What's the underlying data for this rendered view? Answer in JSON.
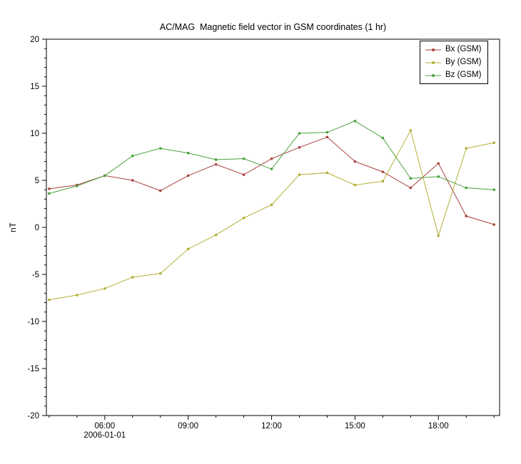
{
  "chart_data": {
    "type": "line",
    "title": "AC/MAG  Magnetic field vector in GSM coordinates (1 hr)",
    "ylabel": "nT",
    "xdate": "2006-01-01",
    "ylim": [
      -20,
      20
    ],
    "xlim": [
      3.9,
      20.2
    ],
    "yticks": [
      -20,
      -15,
      -10,
      -5,
      0,
      5,
      10,
      15,
      20
    ],
    "xticks": [
      {
        "h": 6,
        "label": "06:00"
      },
      {
        "h": 9,
        "label": "09:00"
      },
      {
        "h": 12,
        "label": "12:00"
      },
      {
        "h": 15,
        "label": "15:00"
      },
      {
        "h": 18,
        "label": "18:00"
      }
    ],
    "x_unit": "hour of day on 2006-01-01",
    "x": [
      4,
      5,
      6,
      7,
      8,
      9,
      10,
      11,
      12,
      13,
      14,
      15,
      16,
      17,
      18,
      19,
      20
    ],
    "grid": false,
    "legend_position": "top-right",
    "series": [
      {
        "id": "bx",
        "name": "Bx (GSM)",
        "color": "#a8423e",
        "values": [
          4.1,
          4.5,
          5.5,
          5.0,
          3.9,
          5.5,
          6.7,
          5.6,
          7.3,
          8.5,
          9.6,
          7.0,
          5.9,
          4.2,
          6.8,
          1.2,
          0.3
        ]
      },
      {
        "id": "by",
        "name": "By (GSM)",
        "color": "#b3af35",
        "values": [
          -7.7,
          -7.2,
          -6.5,
          -5.3,
          -4.9,
          -2.3,
          -0.8,
          1.0,
          2.4,
          5.6,
          5.8,
          4.5,
          4.9,
          10.3,
          -0.9,
          8.4,
          9.0
        ]
      },
      {
        "id": "bz",
        "name": "Bz (GSM)",
        "color": "#49a23c",
        "values": [
          3.6,
          4.4,
          5.5,
          7.6,
          8.4,
          7.9,
          7.2,
          7.3,
          6.2,
          10.0,
          10.1,
          11.3,
          9.5,
          5.2,
          5.4,
          4.2,
          4.0
        ]
      }
    ]
  }
}
